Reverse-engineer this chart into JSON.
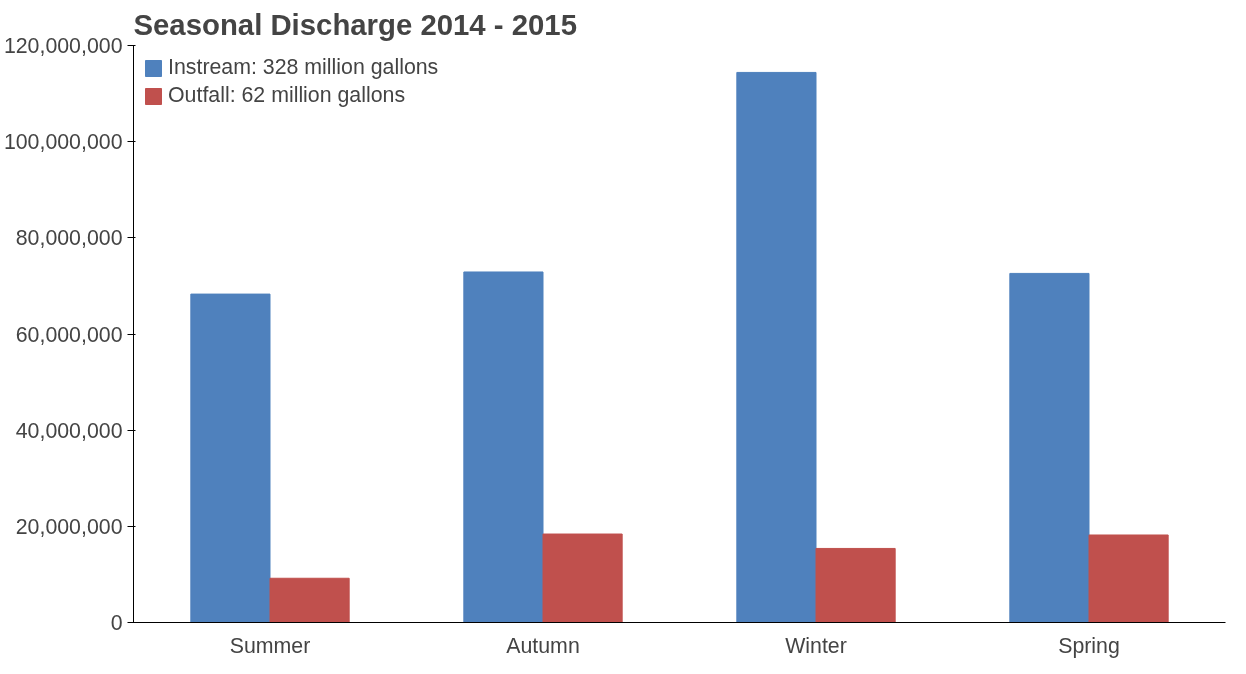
{
  "chart_data": {
    "type": "bar",
    "title": "Seasonal Discharge 2014 - 2015",
    "categories": [
      "Summer",
      "Autumn",
      "Winter",
      "Spring"
    ],
    "series": [
      {
        "name": "Instream: 328 million gallons",
        "color": "#4f81bd",
        "values": [
          68300000,
          72900000,
          114400000,
          72600000
        ]
      },
      {
        "name": "Outfall: 62 million gallons",
        "color": "#c0504d",
        "values": [
          9200000,
          18400000,
          15400000,
          18200000
        ]
      }
    ],
    "ylim": [
      0,
      120000000
    ],
    "yticks": [
      {
        "value": 0,
        "label": "0"
      },
      {
        "value": 20000000,
        "label": "20,000,000"
      },
      {
        "value": 40000000,
        "label": "40,000,000"
      },
      {
        "value": 60000000,
        "label": "60,000,000"
      },
      {
        "value": 80000000,
        "label": "80,000,000"
      },
      {
        "value": 100000000,
        "label": "100,000,000"
      },
      {
        "value": 120000000,
        "label": "120,000,000"
      }
    ],
    "grid": false,
    "legend": "top left"
  }
}
